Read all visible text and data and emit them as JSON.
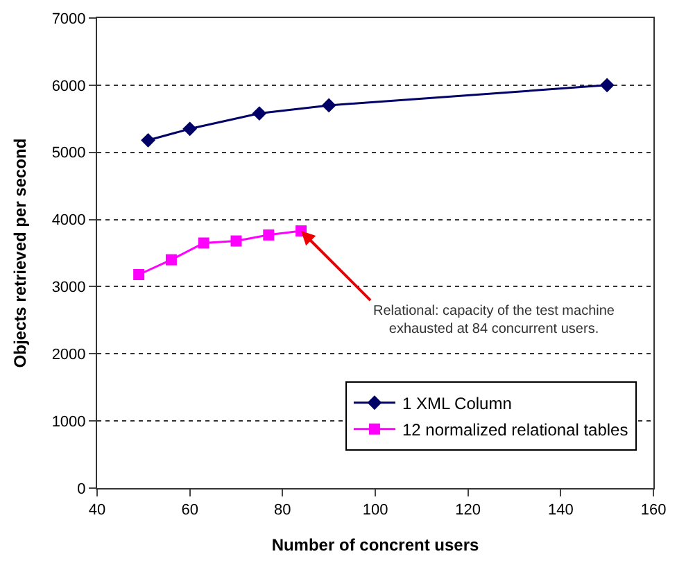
{
  "chart_data": {
    "type": "line",
    "xlabel": "Number of concrent users",
    "ylabel": "Objects retrieved per second",
    "xlim": [
      40,
      160
    ],
    "xticks": [
      40,
      60,
      80,
      100,
      120,
      140,
      160
    ],
    "ylim": [
      0,
      7000
    ],
    "yticks": [
      0,
      1000,
      2000,
      3000,
      4000,
      5000,
      6000,
      7000
    ],
    "grid": "y",
    "legend": "bottom right",
    "series": [
      {
        "name": "1 XML Column",
        "color": "#000066",
        "marker": "diamond",
        "x": [
          51,
          60,
          75,
          90,
          150
        ],
        "values": [
          5180,
          5350,
          5580,
          5700,
          6000
        ]
      },
      {
        "name": "12 normalized relational tables",
        "color": "#ff00ff",
        "marker": "square",
        "x": [
          49,
          56,
          63,
          70,
          77,
          84
        ],
        "values": [
          3180,
          3400,
          3650,
          3680,
          3770,
          3830
        ]
      }
    ],
    "annotations": [
      {
        "text": "Relational: capacity of the test machine\nexhausted at 84 concurrent users.",
        "x": 84,
        "y": 3830
      }
    ]
  }
}
